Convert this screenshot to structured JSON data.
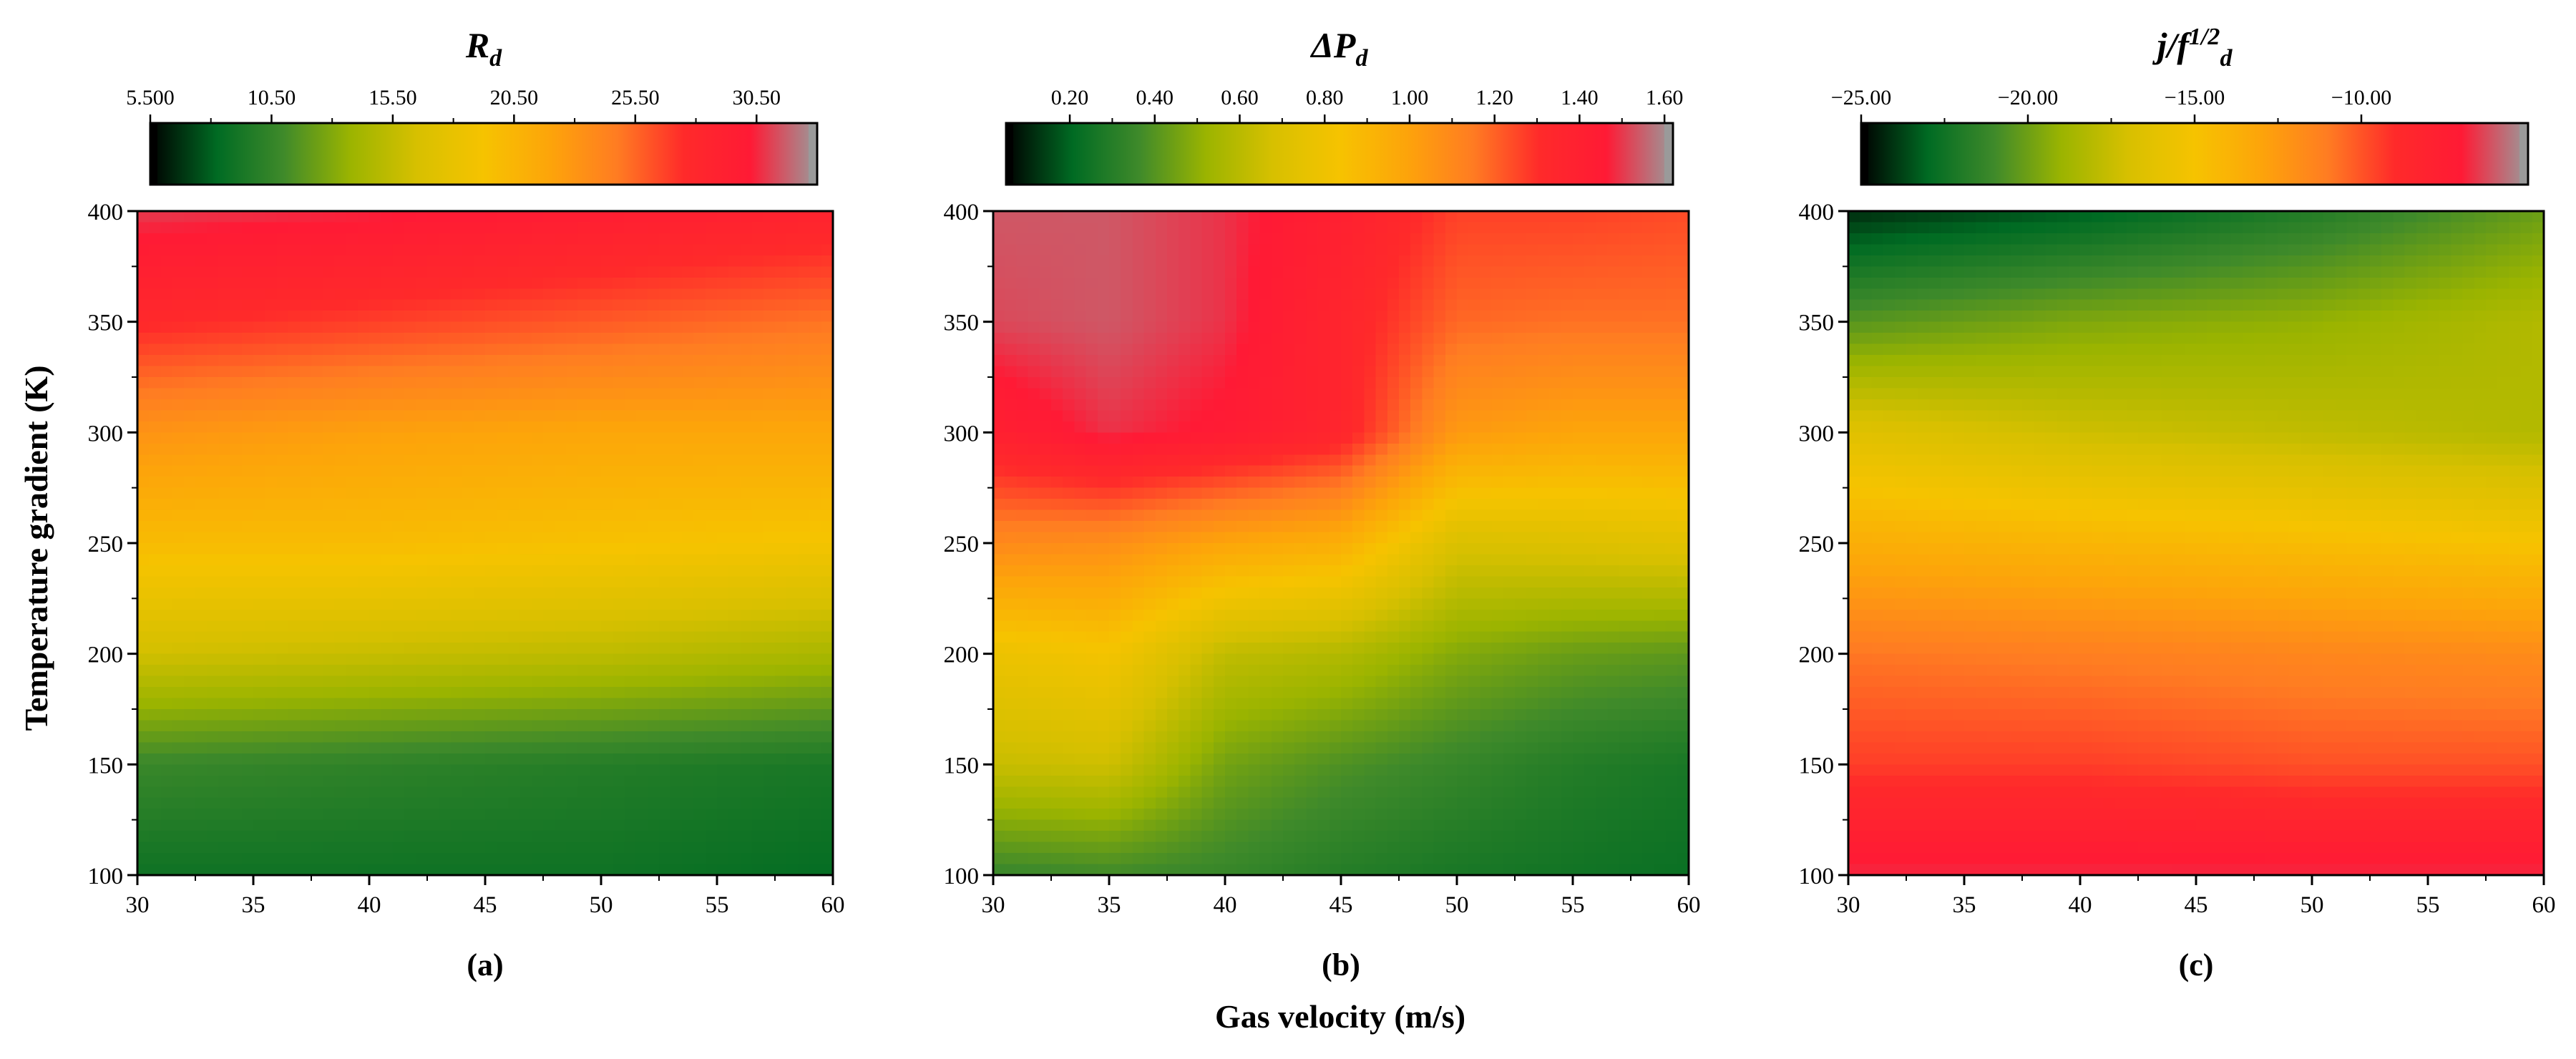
{
  "figure": {
    "shared_xlabel": "Gas velocity (m/s)",
    "shared_ylabel": "Temperature gradient (K)"
  },
  "colormap": [
    "#000000",
    "#006b23",
    "#3f8a2a",
    "#9bb400",
    "#d7c000",
    "#f6c300",
    "#fda40a",
    "#ff7c22",
    "#ff2a2a",
    "#ff1a35",
    "#9a9a9a"
  ],
  "chart_data": [
    {
      "type": "heatmap",
      "panel_label": "(a)",
      "colorbar": {
        "title": "R",
        "subscript": "d",
        "ticks": [
          "5.500",
          "10.50",
          "15.50",
          "20.50",
          "25.50",
          "30.50"
        ],
        "tick_values": [
          5.5,
          10.5,
          15.5,
          20.5,
          25.5,
          30.5
        ],
        "range": [
          5.5,
          33.0
        ]
      },
      "xlim": [
        30,
        60
      ],
      "ylim": [
        100,
        400
      ],
      "x_ticks": [
        "30",
        "35",
        "40",
        "45",
        "50",
        "55",
        "60"
      ],
      "y_ticks": [
        "100",
        "150",
        "200",
        "250",
        "300",
        "350",
        "400"
      ],
      "x": [
        30,
        40,
        50,
        60
      ],
      "y": [
        100,
        150,
        200,
        250,
        300,
        350,
        400
      ],
      "z": [
        [
          8.0,
          8.0,
          8.0,
          7.5
        ],
        [
          10.0,
          9.5,
          9.0,
          8.5
        ],
        [
          16.0,
          15.5,
          15.0,
          14.0
        ],
        [
          20.0,
          20.0,
          19.5,
          19.0
        ],
        [
          23.5,
          22.5,
          22.0,
          22.0
        ],
        [
          28.5,
          27.5,
          26.5,
          25.5
        ],
        [
          32.0,
          31.5,
          30.5,
          29.5
        ]
      ]
    },
    {
      "type": "heatmap",
      "panel_label": "(b)",
      "colorbar": {
        "title": "ΔP",
        "subscript": "d",
        "ticks": [
          "0.20",
          "0.40",
          "0.60",
          "0.80",
          "1.00",
          "1.20",
          "1.40",
          "1.60"
        ],
        "tick_values": [
          0.2,
          0.4,
          0.6,
          0.8,
          1.0,
          1.2,
          1.4,
          1.6
        ],
        "range": [
          0.05,
          1.62
        ]
      },
      "xlim": [
        30,
        60
      ],
      "ylim": [
        100,
        400
      ],
      "x_ticks": [
        "30",
        "35",
        "40",
        "45",
        "50",
        "55",
        "60"
      ],
      "y_ticks": [
        "100",
        "150",
        "200",
        "250",
        "300",
        "350",
        "400"
      ],
      "x": [
        30,
        35,
        40,
        45,
        50,
        55,
        60
      ],
      "y": [
        100,
        150,
        200,
        250,
        300,
        350,
        400
      ],
      "z": [
        [
          0.3,
          0.32,
          0.3,
          0.25,
          0.22,
          0.2,
          0.18
        ],
        [
          0.62,
          0.64,
          0.42,
          0.35,
          0.3,
          0.25,
          0.22
        ],
        [
          0.78,
          0.82,
          0.6,
          0.56,
          0.45,
          0.4,
          0.38
        ],
        [
          1.12,
          1.1,
          1.0,
          0.95,
          0.68,
          0.7,
          0.72
        ],
        [
          1.45,
          1.55,
          1.5,
          1.4,
          1.05,
          1.0,
          1.0
        ],
        [
          1.58,
          1.6,
          1.55,
          1.4,
          1.22,
          1.2,
          1.2
        ],
        [
          1.6,
          1.6,
          1.55,
          1.45,
          1.3,
          1.3,
          1.28
        ]
      ]
    },
    {
      "type": "heatmap",
      "panel_label": "(c)",
      "colorbar": {
        "title": "j/f",
        "superscript": "1/2",
        "subscript": "d",
        "ticks": [
          "−25.00",
          "−20.00",
          "−15.00",
          "−10.00"
        ],
        "tick_values": [
          -25,
          -20,
          -15,
          -10
        ],
        "range": [
          -25.0,
          -5.0
        ]
      },
      "xlim": [
        30,
        60
      ],
      "ylim": [
        100,
        400
      ],
      "x_ticks": [
        "30",
        "35",
        "40",
        "45",
        "50",
        "55",
        "60"
      ],
      "y_ticks": [
        "100",
        "150",
        "200",
        "250",
        "300",
        "350",
        "400"
      ],
      "x": [
        30,
        40,
        50,
        60
      ],
      "y": [
        100,
        150,
        200,
        250,
        300,
        350,
        400
      ],
      "z": [
        [
          -6.0,
          -6.0,
          -6.0,
          -6.0
        ],
        [
          -9.0,
          -9.0,
          -9.5,
          -9.5
        ],
        [
          -10.5,
          -10.8,
          -11.2,
          -11.5
        ],
        [
          -13.5,
          -14.0,
          -14.5,
          -15.0
        ],
        [
          -16.5,
          -17.5,
          -18.0,
          -18.5
        ],
        [
          -21.0,
          -20.0,
          -19.5,
          -18.5
        ],
        [
          -25.0,
          -24.0,
          -22.5,
          -20.5
        ]
      ]
    }
  ]
}
